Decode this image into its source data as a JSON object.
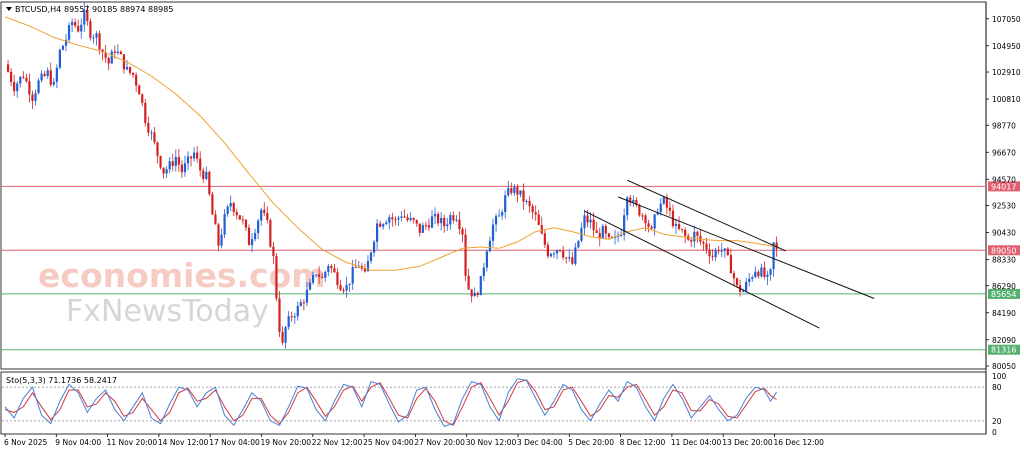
{
  "header": {
    "symbol_label": "BTCUSD,H4",
    "ohlc_text": "89557 90185 88974 88985"
  },
  "indicator": {
    "label": "Sto(5,3,3) 71.1736 58.2417",
    "levels": [
      100,
      80,
      20,
      0
    ],
    "main_color": "#4a7fd4",
    "signal_color": "#d43a3a"
  },
  "watermark": {
    "line1": "economies.com",
    "line2": "FxNewsToday"
  },
  "colors": {
    "bull": "#1f5fd6",
    "bear": "#d22020",
    "ma": "#f0a030",
    "resistance": "#e06070",
    "support": "#56b070",
    "channel": "#111111"
  },
  "chart_data": [
    {
      "type": "candlestick",
      "title": "BTCUSD,H4",
      "ylim": [
        80050,
        108200
      ],
      "y_ticks": [
        107050,
        104950,
        102910,
        100810,
        98770,
        96670,
        94570,
        92530,
        90430,
        88330,
        86290,
        84190,
        82090,
        80050
      ],
      "x_tick_labels": [
        "6 Nov 2025",
        "9 Nov 04:00",
        "11 Nov 20:00",
        "14 Nov 12:00",
        "17 Nov 04:00",
        "19 Nov 20:00",
        "22 Nov 12:00",
        "25 Nov 04:00",
        "27 Nov 20:00",
        "30 Nov 12:00",
        "3 Dec 04:00",
        "5 Dec 20:00",
        "8 Dec 12:00",
        "11 Dec 04:00",
        "13 Dec 20:00",
        "16 Dec 12:00"
      ],
      "horizontal_levels": [
        {
          "value": 94017,
          "label": "94017",
          "kind": "resistance"
        },
        {
          "value": 89050,
          "label": "89050",
          "kind": "resistance"
        },
        {
          "value": 85654,
          "label": "85654",
          "kind": "support"
        },
        {
          "value": 81316,
          "label": "81316",
          "kind": "support"
        }
      ],
      "close_path": [
        [
          0,
          103500
        ],
        [
          3,
          101800
        ],
        [
          6,
          102700
        ],
        [
          9,
          101000
        ],
        [
          11,
          102100
        ],
        [
          14,
          102800
        ],
        [
          16,
          101800
        ],
        [
          18,
          104500
        ],
        [
          20,
          105500
        ],
        [
          22,
          106800
        ],
        [
          24,
          106300
        ],
        [
          26,
          107300
        ],
        [
          28,
          106000
        ],
        [
          30,
          105700
        ],
        [
          32,
          104500
        ],
        [
          34,
          103600
        ],
        [
          36,
          104700
        ],
        [
          38,
          104000
        ],
        [
          40,
          103000
        ],
        [
          42,
          102700
        ],
        [
          44,
          101500
        ],
        [
          46,
          99300
        ],
        [
          48,
          98000
        ],
        [
          50,
          96500
        ],
        [
          52,
          95200
        ],
        [
          54,
          95600
        ],
        [
          56,
          96300
        ],
        [
          58,
          95200
        ],
        [
          60,
          95900
        ],
        [
          62,
          96600
        ],
        [
          64,
          95300
        ],
        [
          66,
          94700
        ],
        [
          68,
          91800
        ],
        [
          70,
          89500
        ],
        [
          72,
          91500
        ],
        [
          74,
          92800
        ],
        [
          76,
          92000
        ],
        [
          78,
          91200
        ],
        [
          80,
          89700
        ],
        [
          82,
          90800
        ],
        [
          84,
          92200
        ],
        [
          86,
          91000
        ],
        [
          88,
          88400
        ],
        [
          89,
          85500
        ],
        [
          90,
          83000
        ],
        [
          91,
          81600
        ],
        [
          92,
          83000
        ],
        [
          94,
          84000
        ],
        [
          96,
          84500
        ],
        [
          98,
          85300
        ],
        [
          100,
          86200
        ],
        [
          102,
          87400
        ],
        [
          104,
          86800
        ],
        [
          106,
          88000
        ],
        [
          108,
          87200
        ],
        [
          110,
          86400
        ],
        [
          112,
          86200
        ],
        [
          114,
          87300
        ],
        [
          116,
          88000
        ],
        [
          118,
          87000
        ],
        [
          120,
          89100
        ],
        [
          122,
          91100
        ],
        [
          124,
          91400
        ],
        [
          126,
          91700
        ],
        [
          128,
          91300
        ],
        [
          130,
          91900
        ],
        [
          132,
          91400
        ],
        [
          134,
          91200
        ],
        [
          136,
          90600
        ],
        [
          138,
          91000
        ],
        [
          140,
          91500
        ],
        [
          142,
          91400
        ],
        [
          144,
          91000
        ],
        [
          146,
          91700
        ],
        [
          148,
          91800
        ],
        [
          150,
          90500
        ],
        [
          151,
          87300
        ],
        [
          152,
          86100
        ],
        [
          153,
          85800
        ],
        [
          154,
          85400
        ],
        [
          156,
          86600
        ],
        [
          158,
          89300
        ],
        [
          160,
          91000
        ],
        [
          162,
          91600
        ],
        [
          164,
          93100
        ],
        [
          166,
          93800
        ],
        [
          168,
          93600
        ],
        [
          170,
          93000
        ],
        [
          172,
          92300
        ],
        [
          174,
          91600
        ],
        [
          176,
          90100
        ],
        [
          178,
          88900
        ],
        [
          180,
          89100
        ],
        [
          182,
          89300
        ],
        [
          184,
          88400
        ],
        [
          186,
          88000
        ],
        [
          188,
          89800
        ],
        [
          190,
          91500
        ],
        [
          192,
          91200
        ],
        [
          194,
          90200
        ],
        [
          196,
          90500
        ],
        [
          198,
          89700
        ],
        [
          200,
          89800
        ],
        [
          202,
          90600
        ],
        [
          204,
          93600
        ],
        [
          206,
          92600
        ],
        [
          208,
          92100
        ],
        [
          210,
          91600
        ],
        [
          212,
          90400
        ],
        [
          214,
          92400
        ],
        [
          216,
          92800
        ],
        [
          218,
          91900
        ],
        [
          220,
          90700
        ],
        [
          222,
          90400
        ],
        [
          224,
          89800
        ],
        [
          226,
          90300
        ],
        [
          228,
          89700
        ],
        [
          230,
          89300
        ],
        [
          232,
          88600
        ],
        [
          234,
          89300
        ],
        [
          236,
          88800
        ],
        [
          238,
          87700
        ],
        [
          240,
          86100
        ],
        [
          242,
          85900
        ],
        [
          244,
          86800
        ],
        [
          246,
          87600
        ],
        [
          248,
          87300
        ],
        [
          250,
          86700
        ],
        [
          251,
          87200
        ],
        [
          252,
          89500
        ],
        [
          253,
          88985
        ]
      ],
      "ma_path": [
        [
          0,
          107200
        ],
        [
          8,
          106500
        ],
        [
          16,
          105600
        ],
        [
          24,
          105000
        ],
        [
          32,
          104500
        ],
        [
          40,
          103700
        ],
        [
          48,
          102600
        ],
        [
          56,
          101200
        ],
        [
          64,
          99500
        ],
        [
          72,
          97400
        ],
        [
          80,
          95000
        ],
        [
          88,
          92700
        ],
        [
          96,
          90800
        ],
        [
          104,
          89100
        ],
        [
          112,
          88100
        ],
        [
          120,
          87500
        ],
        [
          128,
          87500
        ],
        [
          136,
          87800
        ],
        [
          144,
          88600
        ],
        [
          150,
          89200
        ],
        [
          156,
          89300
        ],
        [
          162,
          89200
        ],
        [
          168,
          89700
        ],
        [
          174,
          90500
        ],
        [
          180,
          90800
        ],
        [
          186,
          90500
        ],
        [
          192,
          90100
        ],
        [
          198,
          89900
        ],
        [
          204,
          90500
        ],
        [
          210,
          90800
        ],
        [
          216,
          90300
        ],
        [
          222,
          90100
        ],
        [
          228,
          89900
        ],
        [
          234,
          89800
        ],
        [
          240,
          89800
        ],
        [
          246,
          89600
        ],
        [
          253,
          89300
        ]
      ],
      "channel_lines": [
        [
          [
            201,
            93200
          ],
          [
            285,
            85300
          ]
        ],
        [
          [
            190,
            92100
          ],
          [
            267,
            83000
          ]
        ],
        [
          [
            204,
            94500
          ],
          [
            256,
            89000
          ]
        ]
      ],
      "stochastic_oscillator": [
        [
          0,
          45
        ],
        [
          3,
          25
        ],
        [
          6,
          60
        ],
        [
          9,
          80
        ],
        [
          12,
          30
        ],
        [
          15,
          15
        ],
        [
          18,
          55
        ],
        [
          21,
          85
        ],
        [
          24,
          70
        ],
        [
          27,
          35
        ],
        [
          30,
          60
        ],
        [
          33,
          75
        ],
        [
          36,
          40
        ],
        [
          39,
          20
        ],
        [
          42,
          45
        ],
        [
          45,
          70
        ],
        [
          48,
          25
        ],
        [
          51,
          15
        ],
        [
          54,
          50
        ],
        [
          57,
          80
        ],
        [
          60,
          75
        ],
        [
          63,
          45
        ],
        [
          66,
          70
        ],
        [
          69,
          80
        ],
        [
          72,
          30
        ],
        [
          75,
          12
        ],
        [
          78,
          40
        ],
        [
          81,
          70
        ],
        [
          84,
          55
        ],
        [
          87,
          20
        ],
        [
          90,
          12
        ],
        [
          93,
          45
        ],
        [
          96,
          82
        ],
        [
          99,
          78
        ],
        [
          102,
          40
        ],
        [
          105,
          20
        ],
        [
          108,
          55
        ],
        [
          111,
          85
        ],
        [
          114,
          80
        ],
        [
          117,
          45
        ],
        [
          120,
          90
        ],
        [
          123,
          85
        ],
        [
          126,
          50
        ],
        [
          129,
          18
        ],
        [
          132,
          30
        ],
        [
          135,
          75
        ],
        [
          138,
          80
        ],
        [
          141,
          40
        ],
        [
          144,
          10
        ],
        [
          147,
          15
        ],
        [
          150,
          60
        ],
        [
          153,
          90
        ],
        [
          156,
          85
        ],
        [
          159,
          45
        ],
        [
          162,
          20
        ],
        [
          165,
          70
        ],
        [
          168,
          95
        ],
        [
          171,
          92
        ],
        [
          174,
          60
        ],
        [
          177,
          30
        ],
        [
          180,
          55
        ],
        [
          183,
          85
        ],
        [
          186,
          75
        ],
        [
          189,
          40
        ],
        [
          192,
          20
        ],
        [
          195,
          50
        ],
        [
          198,
          75
        ],
        [
          201,
          55
        ],
        [
          204,
          90
        ],
        [
          207,
          80
        ],
        [
          210,
          45
        ],
        [
          213,
          20
        ],
        [
          216,
          60
        ],
        [
          219,
          85
        ],
        [
          222,
          60
        ],
        [
          225,
          25
        ],
        [
          228,
          45
        ],
        [
          231,
          65
        ],
        [
          234,
          40
        ],
        [
          237,
          20
        ],
        [
          240,
          30
        ],
        [
          243,
          60
        ],
        [
          246,
          80
        ],
        [
          249,
          75
        ],
        [
          251,
          55
        ],
        [
          253,
          71
        ]
      ],
      "stochastic_signal": [
        [
          0,
          40
        ],
        [
          3,
          35
        ],
        [
          6,
          45
        ],
        [
          9,
          70
        ],
        [
          12,
          45
        ],
        [
          15,
          22
        ],
        [
          18,
          40
        ],
        [
          21,
          75
        ],
        [
          24,
          75
        ],
        [
          27,
          45
        ],
        [
          30,
          50
        ],
        [
          33,
          70
        ],
        [
          36,
          55
        ],
        [
          39,
          28
        ],
        [
          42,
          35
        ],
        [
          45,
          60
        ],
        [
          48,
          40
        ],
        [
          51,
          20
        ],
        [
          54,
          35
        ],
        [
          57,
          70
        ],
        [
          60,
          78
        ],
        [
          63,
          55
        ],
        [
          66,
          60
        ],
        [
          69,
          75
        ],
        [
          72,
          45
        ],
        [
          75,
          20
        ],
        [
          78,
          30
        ],
        [
          81,
          60
        ],
        [
          84,
          60
        ],
        [
          87,
          30
        ],
        [
          90,
          15
        ],
        [
          93,
          35
        ],
        [
          96,
          70
        ],
        [
          99,
          80
        ],
        [
          102,
          55
        ],
        [
          105,
          28
        ],
        [
          108,
          45
        ],
        [
          111,
          75
        ],
        [
          114,
          82
        ],
        [
          117,
          55
        ],
        [
          120,
          80
        ],
        [
          123,
          88
        ],
        [
          126,
          60
        ],
        [
          129,
          30
        ],
        [
          132,
          25
        ],
        [
          135,
          60
        ],
        [
          138,
          78
        ],
        [
          141,
          55
        ],
        [
          144,
          20
        ],
        [
          147,
          12
        ],
        [
          150,
          45
        ],
        [
          153,
          80
        ],
        [
          156,
          88
        ],
        [
          159,
          60
        ],
        [
          162,
          30
        ],
        [
          165,
          55
        ],
        [
          168,
          88
        ],
        [
          171,
          93
        ],
        [
          174,
          72
        ],
        [
          177,
          40
        ],
        [
          180,
          45
        ],
        [
          183,
          75
        ],
        [
          186,
          80
        ],
        [
          189,
          55
        ],
        [
          192,
          28
        ],
        [
          195,
          40
        ],
        [
          198,
          65
        ],
        [
          201,
          62
        ],
        [
          204,
          80
        ],
        [
          207,
          85
        ],
        [
          210,
          58
        ],
        [
          213,
          30
        ],
        [
          216,
          45
        ],
        [
          219,
          75
        ],
        [
          222,
          70
        ],
        [
          225,
          38
        ],
        [
          228,
          38
        ],
        [
          231,
          58
        ],
        [
          234,
          50
        ],
        [
          237,
          28
        ],
        [
          240,
          25
        ],
        [
          243,
          48
        ],
        [
          246,
          72
        ],
        [
          249,
          78
        ],
        [
          251,
          65
        ],
        [
          253,
          58
        ]
      ]
    }
  ]
}
